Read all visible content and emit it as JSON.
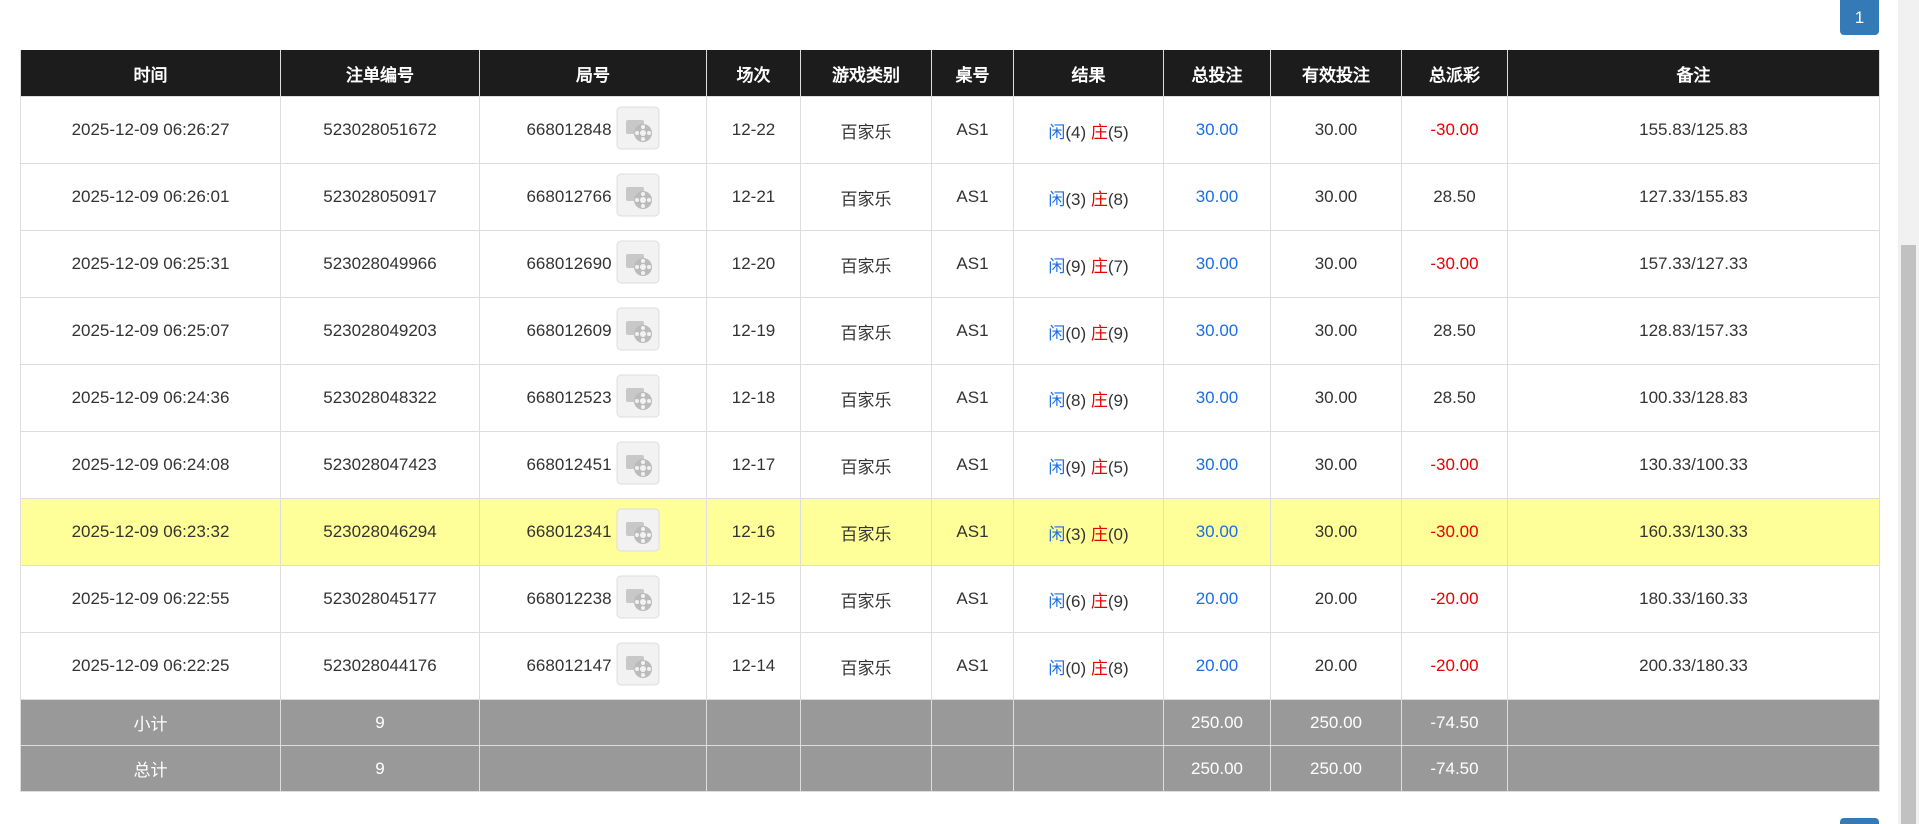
{
  "pagination": {
    "current_page": "1"
  },
  "table": {
    "columns": [
      "时间",
      "注单编号",
      "局号",
      "场次",
      "游戏类别",
      "桌号",
      "结果",
      "总投注",
      "有效投注",
      "总派彩",
      "备注"
    ],
    "rows": [
      {
        "time": "2025-12-09 06:26:27",
        "order_no": "523028051672",
        "round_no": "668012848",
        "session": "12-22",
        "game": "百家乐",
        "table": "AS1",
        "result": {
          "player": "闲",
          "player_score": "(4)",
          "banker": "庄",
          "banker_score": "(5)"
        },
        "total_bet": "30.00",
        "valid_bet": "30.00",
        "payout": "-30.00",
        "remark": "155.83/125.83"
      },
      {
        "time": "2025-12-09 06:26:01",
        "order_no": "523028050917",
        "round_no": "668012766",
        "session": "12-21",
        "game": "百家乐",
        "table": "AS1",
        "result": {
          "player": "闲",
          "player_score": "(3)",
          "banker": "庄",
          "banker_score": "(8)"
        },
        "total_bet": "30.00",
        "valid_bet": "30.00",
        "payout": "28.50",
        "remark": "127.33/155.83"
      },
      {
        "time": "2025-12-09 06:25:31",
        "order_no": "523028049966",
        "round_no": "668012690",
        "session": "12-20",
        "game": "百家乐",
        "table": "AS1",
        "result": {
          "player": "闲",
          "player_score": "(9)",
          "banker": "庄",
          "banker_score": "(7)"
        },
        "total_bet": "30.00",
        "valid_bet": "30.00",
        "payout": "-30.00",
        "remark": "157.33/127.33"
      },
      {
        "time": "2025-12-09 06:25:07",
        "order_no": "523028049203",
        "round_no": "668012609",
        "session": "12-19",
        "game": "百家乐",
        "table": "AS1",
        "result": {
          "player": "闲",
          "player_score": "(0)",
          "banker": "庄",
          "banker_score": "(9)"
        },
        "total_bet": "30.00",
        "valid_bet": "30.00",
        "payout": "28.50",
        "remark": "128.83/157.33"
      },
      {
        "time": "2025-12-09 06:24:36",
        "order_no": "523028048322",
        "round_no": "668012523",
        "session": "12-18",
        "game": "百家乐",
        "table": "AS1",
        "result": {
          "player": "闲",
          "player_score": "(8)",
          "banker": "庄",
          "banker_score": "(9)"
        },
        "total_bet": "30.00",
        "valid_bet": "30.00",
        "payout": "28.50",
        "remark": "100.33/128.83"
      },
      {
        "time": "2025-12-09 06:24:08",
        "order_no": "523028047423",
        "round_no": "668012451",
        "session": "12-17",
        "game": "百家乐",
        "table": "AS1",
        "result": {
          "player": "闲",
          "player_score": "(9)",
          "banker": "庄",
          "banker_score": "(5)"
        },
        "total_bet": "30.00",
        "valid_bet": "30.00",
        "payout": "-30.00",
        "remark": "130.33/100.33"
      },
      {
        "time": "2025-12-09 06:23:32",
        "order_no": "523028046294",
        "round_no": "668012341",
        "session": "12-16",
        "game": "百家乐",
        "table": "AS1",
        "result": {
          "player": "闲",
          "player_score": "(3)",
          "banker": "庄",
          "banker_score": "(0)"
        },
        "total_bet": "30.00",
        "valid_bet": "30.00",
        "payout": "-30.00",
        "remark": "160.33/130.33"
      },
      {
        "time": "2025-12-09 06:22:55",
        "order_no": "523028045177",
        "round_no": "668012238",
        "session": "12-15",
        "game": "百家乐",
        "table": "AS1",
        "result": {
          "player": "闲",
          "player_score": "(6)",
          "banker": "庄",
          "banker_score": "(9)"
        },
        "total_bet": "20.00",
        "valid_bet": "20.00",
        "payout": "-20.00",
        "remark": "180.33/160.33"
      },
      {
        "time": "2025-12-09 06:22:25",
        "order_no": "523028044176",
        "round_no": "668012147",
        "session": "12-14",
        "game": "百家乐",
        "table": "AS1",
        "result": {
          "player": "闲",
          "player_score": "(0)",
          "banker": "庄",
          "banker_score": "(8)"
        },
        "total_bet": "20.00",
        "valid_bet": "20.00",
        "payout": "-20.00",
        "remark": "200.33/180.33"
      }
    ],
    "summary": [
      {
        "label": "小计",
        "count": "9",
        "total_bet": "250.00",
        "valid_bet": "250.00",
        "payout": "-74.50"
      },
      {
        "label": "总计",
        "count": "9",
        "total_bet": "250.00",
        "valid_bet": "250.00",
        "payout": "-74.50"
      }
    ]
  }
}
